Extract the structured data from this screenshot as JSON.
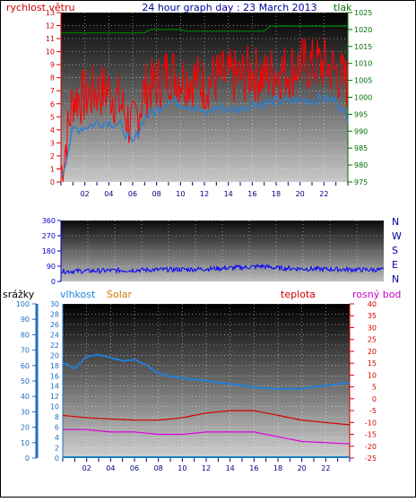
{
  "chart_data": [
    {
      "type": "line",
      "title": "24 hour graph day : 23 March 2013",
      "ylabel_left": "rychlost větru",
      "ylabel_right": "tlak",
      "ylim_left": [
        0,
        13
      ],
      "ylim_right": [
        975,
        1025
      ],
      "y_ticks_left": [
        "0",
        "1",
        "2",
        "3",
        "4",
        "5",
        "6",
        "7",
        "8",
        "9",
        "10",
        "11",
        "12",
        "13"
      ],
      "y_ticks_right": [
        "975",
        "980",
        "985",
        "990",
        "995",
        "1000",
        "1005",
        "1010",
        "1015",
        "1020",
        "1025"
      ],
      "x_ticks": [
        "02",
        "04",
        "06",
        "08",
        "10",
        "12",
        "14",
        "16",
        "18",
        "20",
        "22"
      ],
      "xlim": [
        0,
        24
      ],
      "colors": {
        "gust": "#ff0000",
        "wind": "#2a7fd0",
        "pressure": "#008000"
      },
      "series": [
        {
          "key": "gust",
          "x": [
            0.1,
            1,
            2,
            3,
            4,
            5,
            6,
            7,
            8,
            9,
            10,
            11,
            12,
            13,
            14,
            15,
            16,
            17,
            18,
            19,
            20,
            21,
            22,
            23,
            24
          ],
          "values": [
            1,
            6.5,
            6.5,
            7,
            7,
            6,
            4,
            7,
            7.5,
            8.5,
            8,
            8,
            7.5,
            8,
            8,
            8,
            8.5,
            8,
            8.5,
            8.5,
            9,
            9,
            9,
            8.5,
            7.5
          ]
        },
        {
          "key": "wind",
          "x": [
            0.1,
            1,
            2,
            3,
            4,
            5,
            6,
            7,
            8,
            9,
            10,
            11,
            12,
            13,
            14,
            15,
            16,
            17,
            18,
            19,
            20,
            21,
            22,
            23,
            24
          ],
          "values": [
            0.5,
            4,
            4.2,
            4.5,
            4.6,
            4.3,
            2.9,
            5,
            5.5,
            6.3,
            6,
            5.8,
            5.2,
            5.7,
            5.6,
            5.6,
            6,
            6,
            6.2,
            6.1,
            6.3,
            6.3,
            6.4,
            6.2,
            5
          ]
        },
        {
          "key": "pressure",
          "x": [
            0,
            4,
            7,
            7.5,
            10,
            10.5,
            17,
            17.5,
            24
          ],
          "values": [
            1019,
            1019,
            1019,
            1020,
            1020,
            1019.5,
            1019.5,
            1021,
            1021
          ]
        }
      ]
    },
    {
      "type": "scatter",
      "right_labels": [
        "N",
        "W",
        "S",
        "E",
        "N"
      ],
      "y_ticks": [
        "0",
        "90",
        "180",
        "270",
        "360"
      ],
      "ylim": [
        0,
        360
      ],
      "xlim": [
        0,
        24
      ],
      "colors": {
        "direction": "#0000ff"
      },
      "series": [
        {
          "key": "direction",
          "x": [
            0,
            2,
            4,
            6,
            8,
            10,
            12,
            14,
            15,
            16,
            18,
            20,
            22,
            24
          ],
          "values": [
            60,
            62,
            65,
            68,
            70,
            72,
            78,
            85,
            90,
            80,
            75,
            72,
            70,
            68
          ]
        }
      ]
    },
    {
      "type": "line",
      "legend": [
        "srážky",
        "vlhkost",
        "Solar",
        "teplota",
        "rosný bod"
      ],
      "y_ticks_rain": [
        "0",
        "10",
        "20",
        "30",
        "40",
        "50",
        "60",
        "70",
        "80",
        "90",
        "100"
      ],
      "y_ticks_hum": [
        "0",
        "2",
        "4",
        "6",
        "8",
        "10",
        "12",
        "14",
        "16",
        "18",
        "20",
        "22",
        "24",
        "26",
        "28",
        "30"
      ],
      "y_ticks_temp": [
        "-25",
        "-20",
        "-15",
        "-10",
        "-5",
        "0",
        "5",
        "10",
        "15",
        "20",
        "25",
        "30",
        "35",
        "40"
      ],
      "x_ticks": [
        "02",
        "04",
        "06",
        "08",
        "10",
        "12",
        "14",
        "16",
        "18",
        "20",
        "22"
      ],
      "ylim_rain": [
        0,
        100
      ],
      "ylim_temp": [
        -25,
        40
      ],
      "xlim": [
        0,
        24
      ],
      "colors": {
        "rain": "#1e7fc8",
        "humidity": "#1e7fe0",
        "solar": "#cc7a00",
        "temperature": "#d40000",
        "dewpoint": "#dd00dd"
      },
      "series": [
        {
          "key": "humidity",
          "x": [
            0,
            1,
            2,
            3,
            4,
            5,
            6,
            7,
            8,
            9,
            10,
            12,
            14,
            16,
            18,
            20,
            22,
            24
          ],
          "values": [
            62,
            58,
            66,
            67,
            65,
            63,
            64,
            60,
            55,
            53,
            52,
            50,
            48,
            46,
            45,
            45,
            47,
            49
          ]
        },
        {
          "key": "temperature",
          "x": [
            0,
            2,
            4,
            6,
            8,
            10,
            12,
            14,
            16,
            18,
            20,
            22,
            24
          ],
          "values": [
            -7,
            -8,
            -8.5,
            -9,
            -9,
            -8,
            -6,
            -5,
            -5,
            -7,
            -9,
            -10,
            -11
          ]
        },
        {
          "key": "dewpoint",
          "x": [
            0,
            2,
            4,
            6,
            8,
            10,
            12,
            14,
            16,
            18,
            20,
            22,
            24
          ],
          "values": [
            -13,
            -13,
            -14,
            -14,
            -15,
            -15,
            -14,
            -14,
            -14,
            -16,
            -18,
            -18.5,
            -19
          ]
        }
      ]
    }
  ]
}
